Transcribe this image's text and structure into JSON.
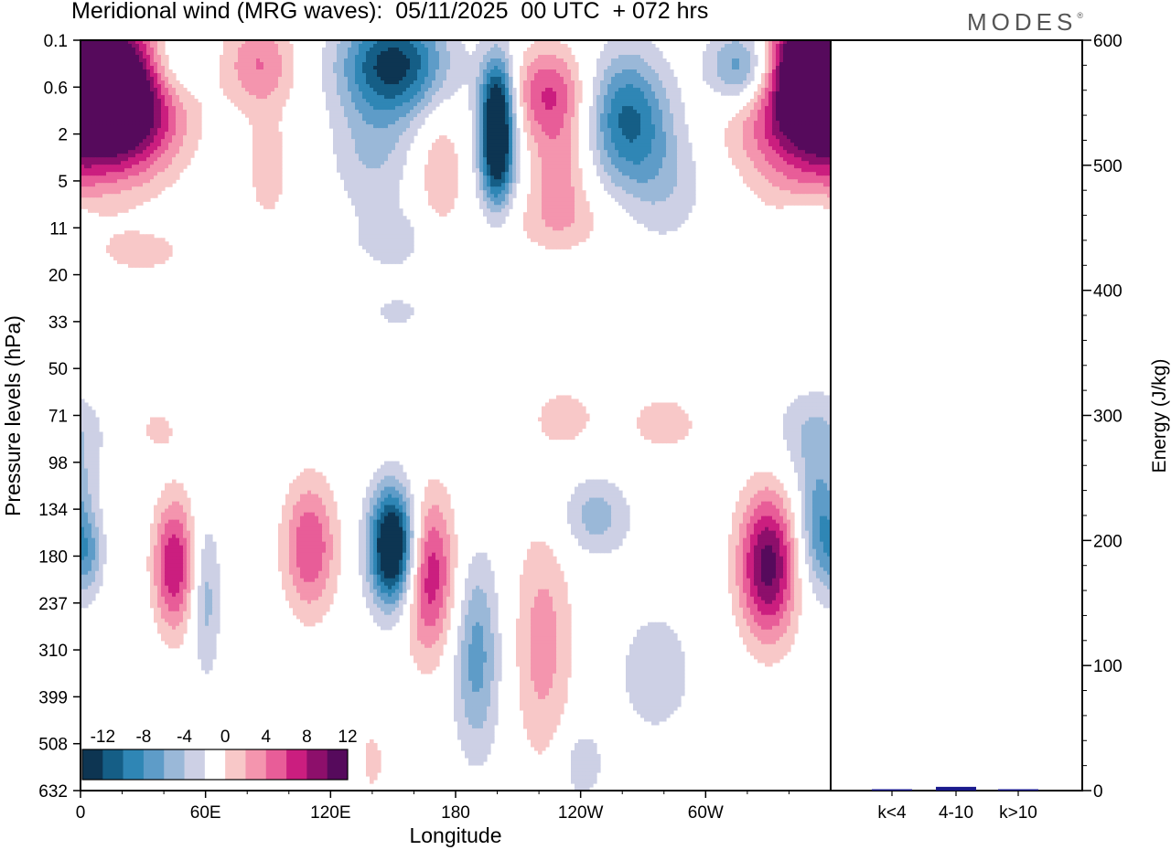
{
  "chart_data": {
    "type": "heatmap",
    "title": "Meridional wind (MRG waves):  05/11/2025  00 UTC  + 072 hrs",
    "brand": "MODES",
    "brand_mark": "®",
    "xlabel": "Longitude",
    "ylabel": "Pressure levels (hPa)",
    "x_ticks": [
      "0",
      "60E",
      "120E",
      "180",
      "120W",
      "60W"
    ],
    "x_tick_deg": [
      0,
      60,
      120,
      180,
      240,
      300
    ],
    "xlim": [
      0,
      360
    ],
    "y_ticks": [
      "0.1",
      "0.6",
      "2",
      "5",
      "11",
      "20",
      "33",
      "50",
      "71",
      "98",
      "134",
      "180",
      "237",
      "310",
      "399",
      "508",
      "632"
    ],
    "colorbar": {
      "labels": [
        "-12",
        "-8",
        "-4",
        "0",
        "4",
        "8",
        "12"
      ],
      "levels": [
        -14,
        -12,
        -10,
        -8,
        -6,
        -4,
        -2,
        2,
        4,
        6,
        8,
        10,
        12,
        14
      ],
      "colors": [
        "#0d3552",
        "#155e86",
        "#2f86b5",
        "#5e9cc8",
        "#9ab8d8",
        "#cdd0e5",
        "#ffffff",
        "#f8c8c8",
        "#f495ae",
        "#e85d98",
        "#cb1e7f",
        "#8d0f6b",
        "#560a5c"
      ]
    },
    "contours": [
      {
        "lon": 8,
        "lev": 0.5,
        "v": 16,
        "sx": 22,
        "sy": 1.2
      },
      {
        "lon": 24,
        "lev": 1.2,
        "v": 8,
        "sx": 18,
        "sy": 0.9
      },
      {
        "lon": 44,
        "lev": 0.25,
        "v": -5,
        "sx": 10,
        "sy": 0.6
      },
      {
        "lon": 86,
        "lev": 0.25,
        "v": 6,
        "sx": 12,
        "sy": 0.7
      },
      {
        "lon": 150,
        "lev": 0.25,
        "v": -13,
        "sx": 18,
        "sy": 0.8
      },
      {
        "lon": 200,
        "lev": 0.9,
        "v": -13,
        "sx": 6,
        "sy": 0.8
      },
      {
        "lon": 225,
        "lev": 0.7,
        "v": 8,
        "sx": 13,
        "sy": 0.7
      },
      {
        "lon": 262,
        "lev": 1.3,
        "v": -10,
        "sx": 14,
        "sy": 1.0
      },
      {
        "lon": 318,
        "lev": 0.3,
        "v": -9,
        "sx": 12,
        "sy": 0.6
      },
      {
        "lon": 352,
        "lev": 0.25,
        "v": 14,
        "sx": 14,
        "sy": 0.8
      },
      {
        "lon": 336,
        "lev": 1.3,
        "v": 5,
        "sx": 22,
        "sy": 0.8
      },
      {
        "lon": 200,
        "lev": 3.5,
        "v": -12,
        "sx": 6,
        "sy": 0.8
      },
      {
        "lon": 230,
        "lev": 4,
        "v": 5,
        "sx": 10,
        "sy": 0.8
      },
      {
        "lon": 172,
        "lev": 4,
        "v": 4,
        "sx": 8,
        "sy": 1.0
      },
      {
        "lon": 90,
        "lev": 4,
        "v": 3.5,
        "sx": 7,
        "sy": 0.8
      },
      {
        "lon": 140,
        "lev": 3,
        "v": -4,
        "sx": 14,
        "sy": 0.9
      },
      {
        "lon": 280,
        "lev": 5,
        "v": -3.5,
        "sx": 15,
        "sy": 1.0
      },
      {
        "lon": 345,
        "lev": 4,
        "v": 3,
        "sx": 18,
        "sy": 1.0
      },
      {
        "lon": 230,
        "lev": 10,
        "v": 2.8,
        "sx": 20,
        "sy": 0.5
      },
      {
        "lon": 150,
        "lev": 13,
        "v": -3,
        "sx": 14,
        "sy": 0.5
      },
      {
        "lon": 30,
        "lev": 15,
        "v": 2.6,
        "sx": 18,
        "sy": 0.4
      },
      {
        "lon": 350,
        "lev": 10,
        "v": -2.6,
        "sx": 10,
        "sy": 0.4
      },
      {
        "lon": 152,
        "lev": 30,
        "v": -2.6,
        "sx": 10,
        "sy": 0.3
      },
      {
        "lon": 352,
        "lev": 80,
        "v": -4,
        "sx": 14,
        "sy": 0.7
      },
      {
        "lon": 232,
        "lev": 72,
        "v": 3,
        "sx": 12,
        "sy": 0.5
      },
      {
        "lon": 280,
        "lev": 75,
        "v": 3,
        "sx": 14,
        "sy": 0.5
      },
      {
        "lon": 37,
        "lev": 78,
        "v": 2.5,
        "sx": 8,
        "sy": 0.4
      },
      {
        "lon": 45,
        "lev": 190,
        "v": 10,
        "sx": 7,
        "sy": 1.0
      },
      {
        "lon": 60,
        "lev": 230,
        "v": -5,
        "sx": 5,
        "sy": 1.2
      },
      {
        "lon": 110,
        "lev": 170,
        "v": 8,
        "sx": 9,
        "sy": 1.0
      },
      {
        "lon": 150,
        "lev": 170,
        "v": -18,
        "sx": 8,
        "sy": 0.9
      },
      {
        "lon": 167,
        "lev": 200,
        "v": 10,
        "sx": 9,
        "sy": 1.2
      },
      {
        "lon": 190,
        "lev": 320,
        "v": -7,
        "sx": 8,
        "sy": 1.5
      },
      {
        "lon": 222,
        "lev": 300,
        "v": 5,
        "sx": 10,
        "sy": 1.8
      },
      {
        "lon": 247,
        "lev": 140,
        "v": -5,
        "sx": 12,
        "sy": 0.6
      },
      {
        "lon": 330,
        "lev": 190,
        "v": 13,
        "sx": 10,
        "sy": 1.1
      },
      {
        "lon": 355,
        "lev": 150,
        "v": -8,
        "sx": 8,
        "sy": 1.0
      },
      {
        "lon": 4,
        "lev": 180,
        "v": -4,
        "sx": 5,
        "sy": 0.6
      },
      {
        "lon": 140,
        "lev": 550,
        "v": 3,
        "sx": 4,
        "sy": 0.5
      },
      {
        "lon": 240,
        "lev": 560,
        "v": -3.5,
        "sx": 8,
        "sy": 0.6
      },
      {
        "lon": 276,
        "lev": 350,
        "v": -3,
        "sx": 16,
        "sy": 1.2
      }
    ],
    "right_axis": {
      "label": "Energy (J/kg)",
      "ylim": [
        0,
        600
      ],
      "ticks": [
        "0",
        "100",
        "200",
        "300",
        "400",
        "500",
        "600"
      ],
      "tick_values": [
        0,
        100,
        200,
        300,
        400,
        500,
        600
      ]
    },
    "energy_bars": {
      "categories": [
        "k<4",
        "4-10",
        "k>10"
      ],
      "values": [
        0.5,
        3,
        0.5
      ],
      "color": "#1a1a8c"
    }
  }
}
